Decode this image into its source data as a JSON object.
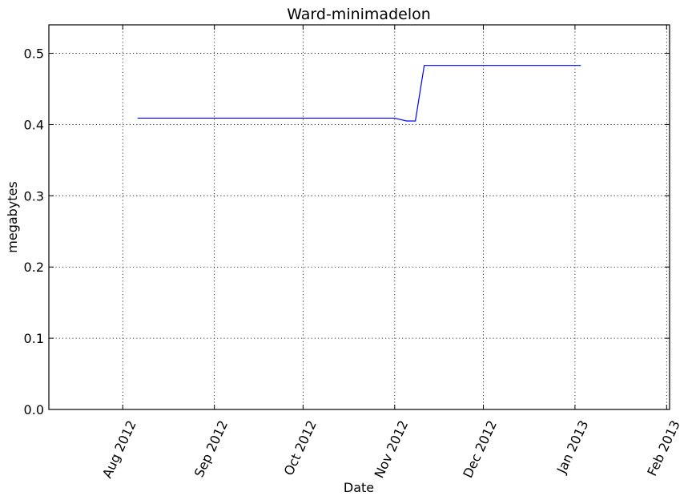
{
  "chart_data": {
    "type": "line",
    "title": "Ward-minimadelon",
    "xlabel": "Date",
    "ylabel": "megabytes",
    "x_axis_type": "date",
    "xlim": [
      "2012-07-07",
      "2013-02-02"
    ],
    "ylim": [
      0,
      0.54
    ],
    "x_ticks": [
      {
        "date": "2012-08-01",
        "label": "Aug 2012"
      },
      {
        "date": "2012-09-01",
        "label": "Sep 2012"
      },
      {
        "date": "2012-10-01",
        "label": "Oct 2012"
      },
      {
        "date": "2012-11-01",
        "label": "Nov 2012"
      },
      {
        "date": "2012-12-01",
        "label": "Dec 2012"
      },
      {
        "date": "2013-01-01",
        "label": "Jan 2013"
      },
      {
        "date": "2013-02-01",
        "label": "Feb 2013"
      }
    ],
    "y_ticks": [
      {
        "value": 0.0,
        "label": "0.0"
      },
      {
        "value": 0.1,
        "label": "0.1"
      },
      {
        "value": 0.2,
        "label": "0.2"
      },
      {
        "value": 0.3,
        "label": "0.3"
      },
      {
        "value": 0.4,
        "label": "0.4"
      },
      {
        "value": 0.5,
        "label": "0.5"
      }
    ],
    "grid": true,
    "series": [
      {
        "color": "#0000ff",
        "points": [
          {
            "x": "2012-08-06",
            "y": 0.409
          },
          {
            "x": "2012-11-01",
            "y": 0.409
          },
          {
            "x": "2012-11-05",
            "y": 0.405
          },
          {
            "x": "2012-11-08",
            "y": 0.405
          },
          {
            "x": "2012-11-11",
            "y": 0.483
          },
          {
            "x": "2013-01-03",
            "y": 0.483
          }
        ]
      }
    ]
  }
}
